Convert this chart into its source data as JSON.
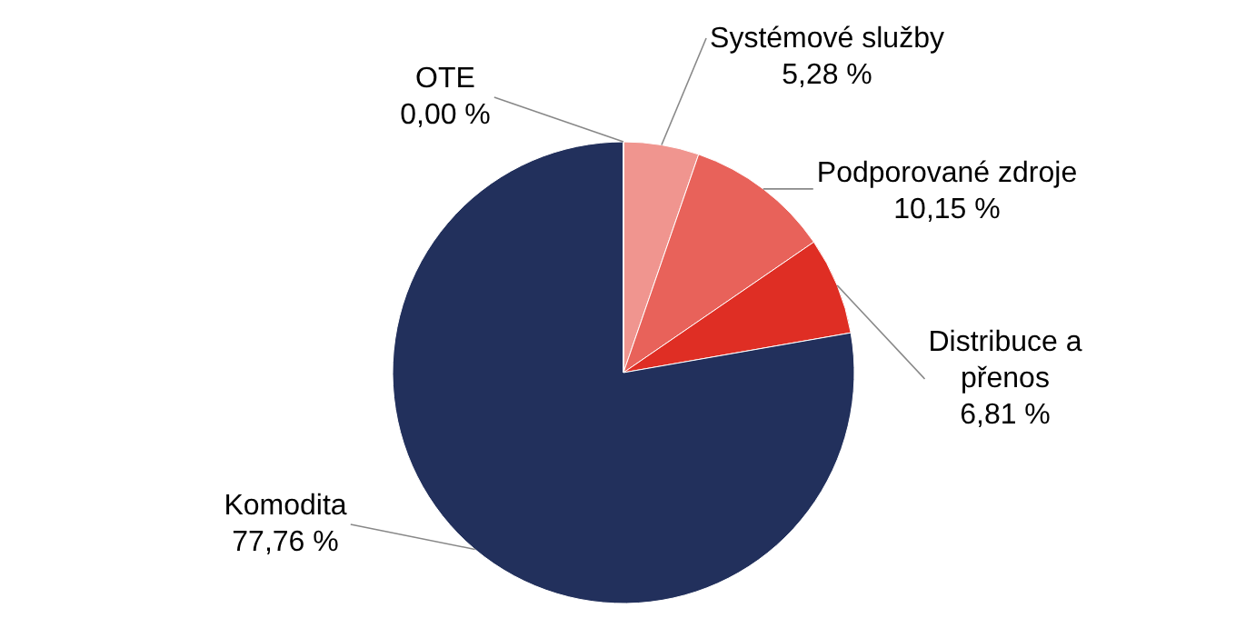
{
  "chart_data": {
    "type": "pie",
    "categories": [
      "Systémové služby",
      "Podporované zdroje",
      "Distribuce a přenos",
      "Komodita",
      "OTE"
    ],
    "values": [
      5.28,
      10.15,
      6.81,
      77.76,
      0.0
    ],
    "value_labels": [
      "5,28 %",
      "10,15 %",
      "6,81 %",
      "77,76 %",
      "0,00 %"
    ],
    "colors": [
      "#f0958f",
      "#e8625a",
      "#df2e24",
      "#22305c",
      "#9aa0b0"
    ]
  }
}
